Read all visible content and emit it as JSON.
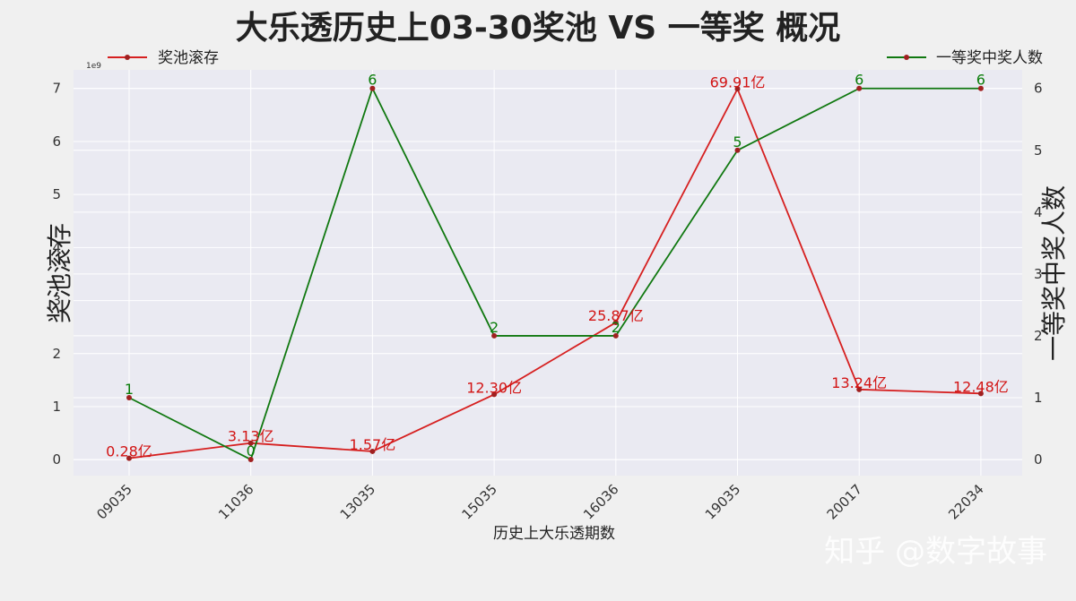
{
  "colors": {
    "page_bg": "#f0f0f0",
    "plot_bg": "#eaeaf2",
    "grid": "#ffffff",
    "pool_line": "#d62020",
    "winners_line": "#107810",
    "marker": "#a02020",
    "pool_label": "#d21414",
    "winners_label": "#0a7d0a",
    "text": "#222222",
    "watermark": "#ffffff"
  },
  "watermark": "知乎 @数字故事",
  "chart_data": {
    "type": "line",
    "title": "大乐透历史上03-30奖池 VS 一等奖 概况",
    "xlabel": "历史上大乐透期数",
    "ylabel_left": "奖池滚存",
    "ylabel_right": "一等奖中奖人数",
    "left_axis_multiplier": "1e9",
    "categories": [
      "09035",
      "11036",
      "13035",
      "15035",
      "16036",
      "19035",
      "20017",
      "22034"
    ],
    "ylim_left": [
      -0.3,
      7.35
    ],
    "ylim_right": [
      -0.26,
      6.3
    ],
    "yticks_left": [
      "0",
      "1",
      "2",
      "3",
      "4",
      "5",
      "6",
      "7"
    ],
    "yticks_right": [
      "0",
      "1",
      "2",
      "3",
      "4",
      "5",
      "6"
    ],
    "grid": true,
    "series": [
      {
        "name": "奖池滚存",
        "axis": "left",
        "values": [
          0.028,
          0.313,
          0.157,
          1.23,
          2.587,
          6.991,
          1.324,
          1.248
        ],
        "labels": [
          "0.28亿",
          "3.13亿",
          "1.57亿",
          "12.30亿",
          "25.87亿",
          "69.91亿",
          "13.24亿",
          "12.48亿"
        ],
        "legend_position": "top-left"
      },
      {
        "name": "一等奖中奖人数",
        "axis": "right",
        "values": [
          1,
          0,
          6,
          2,
          2,
          5,
          6,
          6
        ],
        "labels": [
          "1",
          "0",
          "6",
          "2",
          "2",
          "5",
          "6",
          "6"
        ],
        "legend_position": "top-right"
      }
    ]
  }
}
